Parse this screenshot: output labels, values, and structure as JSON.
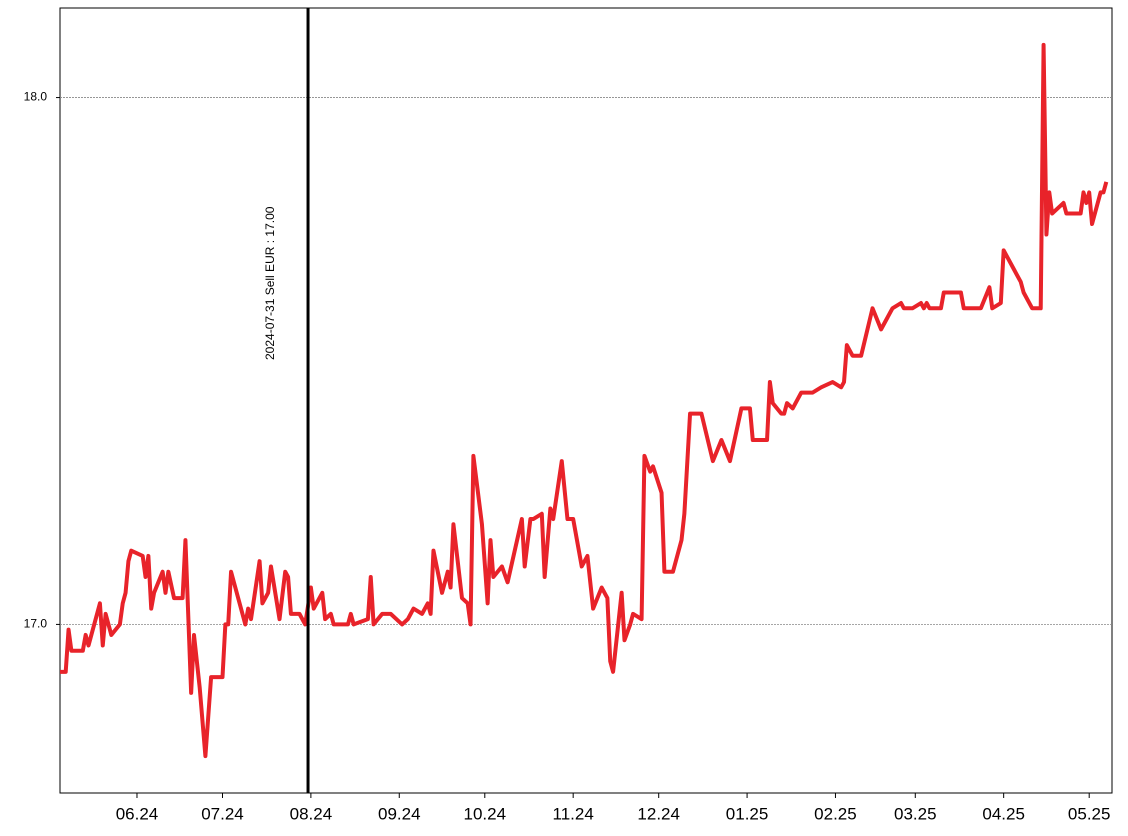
{
  "chart_data": {
    "type": "line",
    "x": [
      "2024-05-05",
      "2024-05-07",
      "2024-05-08",
      "2024-05-09",
      "2024-05-13",
      "2024-05-14",
      "2024-05-15",
      "2024-05-19",
      "2024-05-20",
      "2024-05-21",
      "2024-05-23",
      "2024-05-26",
      "2024-05-27",
      "2024-05-28",
      "2024-05-29",
      "2024-05-30",
      "2024-06-03",
      "2024-06-04",
      "2024-06-05",
      "2024-06-06",
      "2024-06-07",
      "2024-06-10",
      "2024-06-11",
      "2024-06-12",
      "2024-06-14",
      "2024-06-17",
      "2024-06-18",
      "2024-06-20",
      "2024-06-21",
      "2024-06-23",
      "2024-06-25",
      "2024-06-27",
      "2024-07-01",
      "2024-07-02",
      "2024-07-03",
      "2024-07-04",
      "2024-07-07",
      "2024-07-09",
      "2024-07-10",
      "2024-07-11",
      "2024-07-14",
      "2024-07-15",
      "2024-07-17",
      "2024-07-18",
      "2024-07-21",
      "2024-07-23",
      "2024-07-24",
      "2024-07-25",
      "2024-07-28",
      "2024-07-30",
      "2024-08-01",
      "2024-08-02",
      "2024-08-05",
      "2024-08-06",
      "2024-08-08",
      "2024-08-09",
      "2024-08-14",
      "2024-08-15",
      "2024-08-16",
      "2024-08-21",
      "2024-08-22",
      "2024-08-23",
      "2024-08-26",
      "2024-08-29",
      "2024-09-02",
      "2024-09-04",
      "2024-09-05",
      "2024-09-06",
      "2024-09-09",
      "2024-09-11",
      "2024-09-12",
      "2024-09-13",
      "2024-09-16",
      "2024-09-18",
      "2024-09-19",
      "2024-09-20",
      "2024-09-23",
      "2024-09-25",
      "2024-09-26",
      "2024-09-27",
      "2024-09-30",
      "2024-10-02",
      "2024-10-03",
      "2024-10-04",
      "2024-10-07",
      "2024-10-09",
      "2024-10-14",
      "2024-10-15",
      "2024-10-17",
      "2024-10-18",
      "2024-10-21",
      "2024-10-22",
      "2024-10-24",
      "2024-10-25",
      "2024-10-28",
      "2024-10-30",
      "2024-11-01",
      "2024-11-04",
      "2024-11-06",
      "2024-11-08",
      "2024-11-11",
      "2024-11-13",
      "2024-11-14",
      "2024-11-15",
      "2024-11-18",
      "2024-11-19",
      "2024-11-21",
      "2024-11-22",
      "2024-11-25",
      "2024-11-26",
      "2024-11-28",
      "2024-11-29",
      "2024-12-02",
      "2024-12-03",
      "2024-12-06",
      "2024-12-09",
      "2024-12-10",
      "2024-12-12",
      "2024-12-16",
      "2024-12-20",
      "2024-12-23",
      "2024-12-26",
      "2024-12-30",
      "2025-01-02",
      "2025-01-03",
      "2025-01-08",
      "2025-01-09",
      "2025-01-10",
      "2025-01-13",
      "2025-01-14",
      "2025-01-15",
      "2025-01-17",
      "2025-01-20",
      "2025-01-24",
      "2025-01-27",
      "2025-01-31",
      "2025-02-03",
      "2025-02-04",
      "2025-02-05",
      "2025-02-07",
      "2025-02-10",
      "2025-02-14",
      "2025-02-17",
      "2025-02-21",
      "2025-02-24",
      "2025-02-25",
      "2025-02-28",
      "2025-03-03",
      "2025-03-04",
      "2025-03-05",
      "2025-03-06",
      "2025-03-10",
      "2025-03-11",
      "2025-03-17",
      "2025-03-18",
      "2025-03-24",
      "2025-03-27",
      "2025-03-28",
      "2025-03-31",
      "2025-04-01",
      "2025-04-07",
      "2025-04-08",
      "2025-04-11",
      "2025-04-14",
      "2025-04-15",
      "2025-04-16",
      "2025-04-17",
      "2025-04-18",
      "2025-04-22",
      "2025-04-23",
      "2025-04-28",
      "2025-04-29",
      "2025-04-30",
      "2025-05-01",
      "2025-05-02",
      "2025-05-05",
      "2025-05-06",
      "2025-05-07"
    ],
    "values": [
      16.91,
      16.91,
      16.99,
      16.95,
      16.95,
      16.98,
      16.96,
      17.04,
      16.96,
      17.02,
      16.98,
      17.0,
      17.04,
      17.06,
      17.12,
      17.14,
      17.13,
      17.09,
      17.13,
      17.03,
      17.06,
      17.1,
      17.06,
      17.1,
      17.05,
      17.05,
      17.16,
      16.87,
      16.98,
      16.88,
      16.75,
      16.9,
      16.9,
      17.0,
      17.0,
      17.1,
      17.04,
      17.0,
      17.03,
      17.01,
      17.12,
      17.04,
      17.06,
      17.11,
      17.01,
      17.1,
      17.09,
      17.02,
      17.02,
      17.0,
      17.07,
      17.03,
      17.06,
      17.01,
      17.02,
      17.0,
      17.0,
      17.02,
      17.0,
      17.01,
      17.09,
      17.0,
      17.02,
      17.02,
      17.0,
      17.01,
      17.02,
      17.03,
      17.02,
      17.04,
      17.02,
      17.14,
      17.06,
      17.1,
      17.07,
      17.19,
      17.05,
      17.04,
      17.0,
      17.32,
      17.19,
      17.04,
      17.16,
      17.09,
      17.11,
      17.08,
      17.2,
      17.11,
      17.2,
      17.2,
      17.21,
      17.09,
      17.22,
      17.2,
      17.31,
      17.2,
      17.2,
      17.11,
      17.13,
      17.03,
      17.07,
      17.05,
      16.93,
      16.91,
      17.06,
      16.97,
      17.0,
      17.02,
      17.01,
      17.32,
      17.29,
      17.3,
      17.25,
      17.1,
      17.1,
      17.16,
      17.21,
      17.4,
      17.4,
      17.31,
      17.35,
      17.31,
      17.41,
      17.41,
      17.35,
      17.35,
      17.46,
      17.42,
      17.4,
      17.4,
      17.42,
      17.41,
      17.44,
      17.44,
      17.45,
      17.46,
      17.45,
      17.46,
      17.53,
      17.51,
      17.51,
      17.6,
      17.56,
      17.6,
      17.61,
      17.6,
      17.6,
      17.61,
      17.6,
      17.61,
      17.6,
      17.6,
      17.63,
      17.63,
      17.6,
      17.6,
      17.64,
      17.6,
      17.61,
      17.71,
      17.65,
      17.63,
      17.6,
      17.6,
      18.1,
      17.74,
      17.82,
      17.78,
      17.8,
      17.78,
      17.78,
      17.82,
      17.8,
      17.82,
      17.76,
      17.82,
      17.82,
      17.84
    ],
    "color": "#e8232a",
    "xlim": [
      "2024-05-05",
      "2025-05-09"
    ],
    "xticks": [
      {
        "value": "2024-06-01",
        "label": "06.24"
      },
      {
        "value": "2024-07-01",
        "label": "07.24"
      },
      {
        "value": "2024-08-01",
        "label": "08.24"
      },
      {
        "value": "2024-09-01",
        "label": "09.24"
      },
      {
        "value": "2024-10-01",
        "label": "10.24"
      },
      {
        "value": "2024-11-01",
        "label": "11.24"
      },
      {
        "value": "2024-12-01",
        "label": "12.24"
      },
      {
        "value": "2025-01-01",
        "label": "01.25"
      },
      {
        "value": "2025-02-01",
        "label": "02.25"
      },
      {
        "value": "2025-03-01",
        "label": "03.25"
      },
      {
        "value": "2025-04-01",
        "label": "04.25"
      },
      {
        "value": "2025-05-01",
        "label": "05.25"
      }
    ],
    "ylim": [
      16.68,
      18.17
    ],
    "yticks": [
      {
        "value": 17,
        "label": "17.0"
      },
      {
        "value": 18,
        "label": "18.0"
      }
    ],
    "grid": true,
    "annotations": [
      {
        "x": "2024-07-31",
        "label": "2024-07-31 Sell EUR : 17.00"
      }
    ]
  }
}
